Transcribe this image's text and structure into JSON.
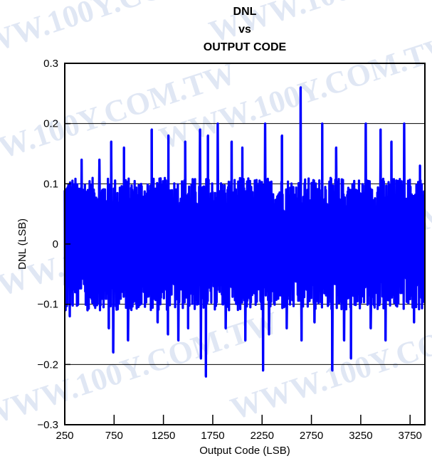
{
  "chart_data": {
    "type": "line",
    "title_lines": [
      "DNL",
      "vs",
      "OUTPUT CODE"
    ],
    "xlabel": "Output Code (LSB)",
    "ylabel": "DNL (LSB)",
    "xlim": [
      250,
      3900
    ],
    "ylim": [
      -0.3,
      0.3
    ],
    "xticks": [
      250,
      750,
      1250,
      1750,
      2250,
      2750,
      3250,
      3750
    ],
    "yticks": [
      -0.3,
      -0.2,
      -0.1,
      0,
      0.1,
      0.2,
      0.3
    ],
    "ytick_labels": [
      "−0.3",
      "−0.2",
      "−0.1",
      "0",
      "0.1",
      "0.2",
      "0.3"
    ],
    "grid": "horizontal",
    "series": [
      {
        "color": "#0000ff",
        "spikes": [
          {
            "x": 300,
            "y": -0.12
          },
          {
            "x": 420,
            "y": 0.14
          },
          {
            "x": 480,
            "y": -0.11
          },
          {
            "x": 600,
            "y": 0.14
          },
          {
            "x": 695,
            "y": -0.14
          },
          {
            "x": 720,
            "y": 0.17
          },
          {
            "x": 740,
            "y": -0.18
          },
          {
            "x": 850,
            "y": 0.16
          },
          {
            "x": 890,
            "y": -0.16
          },
          {
            "x": 1130,
            "y": 0.19
          },
          {
            "x": 1190,
            "y": -0.13
          },
          {
            "x": 1295,
            "y": -0.15
          },
          {
            "x": 1300,
            "y": 0.18
          },
          {
            "x": 1400,
            "y": -0.16
          },
          {
            "x": 1470,
            "y": 0.17
          },
          {
            "x": 1500,
            "y": -0.14
          },
          {
            "x": 1620,
            "y": 0.19
          },
          {
            "x": 1630,
            "y": -0.19
          },
          {
            "x": 1680,
            "y": -0.22
          },
          {
            "x": 1700,
            "y": 0.18
          },
          {
            "x": 1800,
            "y": 0.2
          },
          {
            "x": 1880,
            "y": -0.14
          },
          {
            "x": 1940,
            "y": 0.17
          },
          {
            "x": 2050,
            "y": 0.16
          },
          {
            "x": 2080,
            "y": -0.16
          },
          {
            "x": 2260,
            "y": -0.21
          },
          {
            "x": 2280,
            "y": 0.2
          },
          {
            "x": 2320,
            "y": -0.15
          },
          {
            "x": 2450,
            "y": 0.18
          },
          {
            "x": 2500,
            "y": -0.14
          },
          {
            "x": 2640,
            "y": 0.26
          },
          {
            "x": 2650,
            "y": -0.16
          },
          {
            "x": 2780,
            "y": -0.13
          },
          {
            "x": 2860,
            "y": 0.2
          },
          {
            "x": 2960,
            "y": -0.21
          },
          {
            "x": 3000,
            "y": 0.16
          },
          {
            "x": 3080,
            "y": -0.16
          },
          {
            "x": 3150,
            "y": -0.19
          },
          {
            "x": 3300,
            "y": 0.2
          },
          {
            "x": 3350,
            "y": -0.14
          },
          {
            "x": 3450,
            "y": 0.19
          },
          {
            "x": 3500,
            "y": -0.16
          },
          {
            "x": 3560,
            "y": 0.17
          },
          {
            "x": 3690,
            "y": 0.2
          },
          {
            "x": 3790,
            "y": -0.13
          },
          {
            "x": 3850,
            "y": 0.13
          }
        ],
        "noise_amplitude": 0.11,
        "code_start": 250,
        "code_end": 3895
      }
    ]
  },
  "watermark": {
    "text": "WWW.100Y.COM.TW",
    "color": "#c8d4ec"
  }
}
